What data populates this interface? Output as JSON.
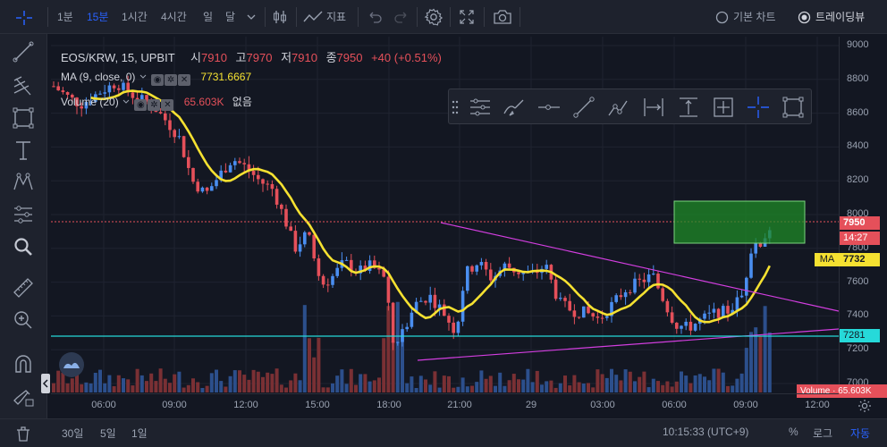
{
  "toolbar": {
    "intervals": [
      "1분",
      "15분",
      "1시간",
      "4시간",
      "일",
      "달"
    ],
    "active_interval": "15분",
    "indicators_label": "지표",
    "chart_mode_basic": "기본 차트",
    "chart_mode_tradingview": "트레이딩뷰"
  },
  "legend": {
    "symbol": "EOS/KRW, 15, UPBIT",
    "open_label": "시",
    "open_value": "7910",
    "high_label": "고",
    "high_value": "7970",
    "low_label": "저",
    "low_value": "7910",
    "close_label": "종",
    "close_value": "7950",
    "change": "+40 (+0.51%)",
    "ma_label": "MA (9, close, 0)",
    "ma_value": "7731.6667",
    "volume_label": "Volume (20)",
    "volume_value": "65.603K",
    "volume_extra": "없음"
  },
  "price_axis": {
    "ticks": [
      "9000",
      "8800",
      "8600",
      "8400",
      "8200",
      "8000",
      "7800",
      "7600",
      "7400",
      "7200",
      "7000"
    ],
    "current_price": "7950",
    "countdown": "14:27",
    "ma_tag": "MA",
    "ma_price": "7732",
    "hline_price": "7281",
    "volume_tag": "Volume · 65.603K"
  },
  "time_axis": {
    "ticks": [
      "06:00",
      "09:00",
      "12:00",
      "15:00",
      "18:00",
      "21:00",
      "29",
      "03:00",
      "06:00",
      "09:00",
      "12:00"
    ]
  },
  "bottombar": {
    "ranges": [
      "30일",
      "5일",
      "1일"
    ],
    "clock": "10:15:33 (UTC+9)",
    "percent": "%",
    "log": "로그",
    "auto": "자동"
  },
  "colors": {
    "up": "#4a8ef0",
    "down": "#e5505a",
    "ma": "#f5e131",
    "trendline": "#d33ee0",
    "hline": "#26d9d9",
    "box_fill": "#1f8a27",
    "accent": "#2962ff"
  },
  "icons": {
    "left_toolbar": [
      "crosshair-icon",
      "trend-line-icon",
      "fib-icon",
      "rectangle-icon",
      "text-icon",
      "pattern-icon",
      "prediction-icon",
      "zoom-icon",
      "ruler-icon",
      "zoom-in-icon",
      "magnet-icon",
      "lock-drawing-icon",
      "hide-drawings-icon"
    ],
    "drawing_toolbar": [
      "fib-retracement-icon",
      "brush-icon",
      "horizontal-ray-icon",
      "trend-line-icon",
      "path-icon",
      "date-range-icon",
      "price-range-icon",
      "date-price-range-icon",
      "crosshair-icon",
      "rectangle-icon"
    ]
  }
}
